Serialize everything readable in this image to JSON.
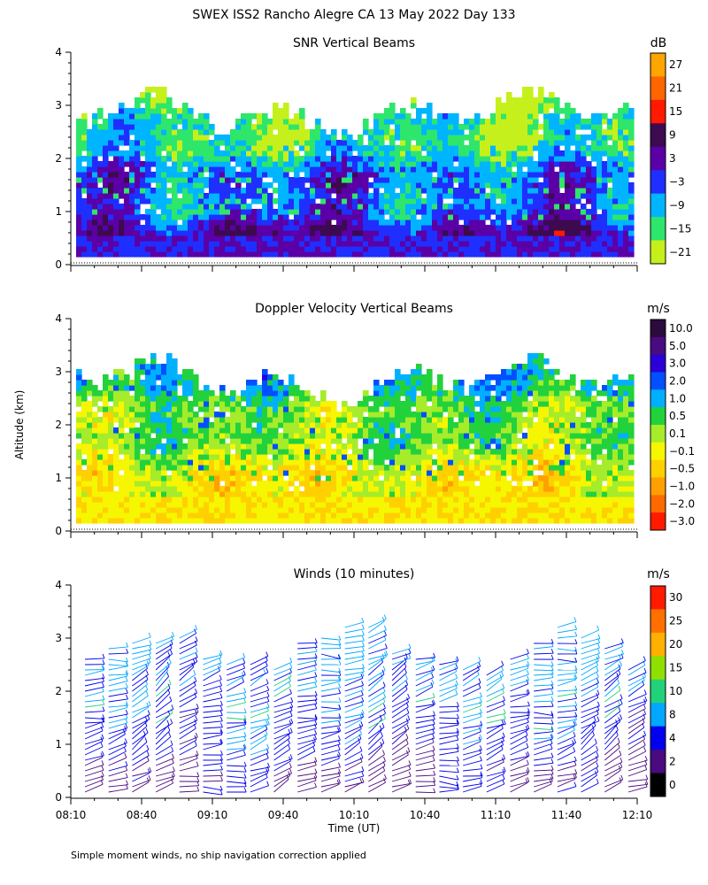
{
  "figure": {
    "title": "SWEX ISS2 Rancho Alegre CA  13 May 2022 Day 133",
    "ylabel": "Altitude (km)",
    "xlabel": "Time (UT)",
    "footnote": "Simple moment winds, no ship navigation correction applied"
  },
  "chart_data": [
    {
      "type": "heatmap",
      "title": "SNR Vertical Beams",
      "units": "dB",
      "y_ticks": [
        "0",
        "1",
        "2",
        "3",
        "4"
      ],
      "ylim": [
        0,
        4
      ],
      "colorbar": {
        "labels": [
          "27",
          "21",
          "15",
          "9",
          "3",
          "−3",
          "−9",
          "−15",
          "−21"
        ],
        "colors": [
          "#ffa500",
          "#ff6600",
          "#ff1a00",
          "#3d0a4f",
          "#5a00a6",
          "#1f2fff",
          "#00b5ff",
          "#2ee66b",
          "#c6f01c"
        ]
      },
      "echo_top_km": 3.3
    },
    {
      "type": "heatmap",
      "title": "Doppler Velocity Vertical Beams",
      "units": "m/s",
      "y_ticks": [
        "0",
        "1",
        "2",
        "3",
        "4"
      ],
      "ylim": [
        0,
        4
      ],
      "colorbar": {
        "labels": [
          "10.0",
          "5.0",
          "3.0",
          "2.0",
          "1.0",
          "0.5",
          "0.1",
          "−0.1",
          "−0.5",
          "−1.0",
          "−2.0",
          "−3.0"
        ],
        "colors": [
          "#2b0a3d",
          "#4a0a80",
          "#2a00d8",
          "#0050ff",
          "#00b0ff",
          "#22d23c",
          "#a6ec2a",
          "#f6f600",
          "#ffd000",
          "#ffa000",
          "#ff6a00",
          "#ff1a00"
        ]
      },
      "echo_top_km": 3.3
    },
    {
      "type": "scatter",
      "title": "Winds (10 minutes)",
      "units": "m/s",
      "y_ticks": [
        "0",
        "1",
        "2",
        "3",
        "4"
      ],
      "ylim": [
        0,
        4
      ],
      "x_ticks": [
        "08:10",
        "08:40",
        "09:10",
        "09:40",
        "10:10",
        "10:40",
        "11:10",
        "11:40",
        "12:10"
      ],
      "colorbar": {
        "labels": [
          "30",
          "25",
          "20",
          "15",
          "10",
          "8",
          "4",
          "2",
          "0"
        ],
        "colors": [
          "#ff1a00",
          "#ff7000",
          "#ffb000",
          "#8fe000",
          "#22d27a",
          "#00a8ff",
          "#0000ee",
          "#4a0a80",
          "#000000"
        ]
      },
      "profiles": 24
    }
  ]
}
